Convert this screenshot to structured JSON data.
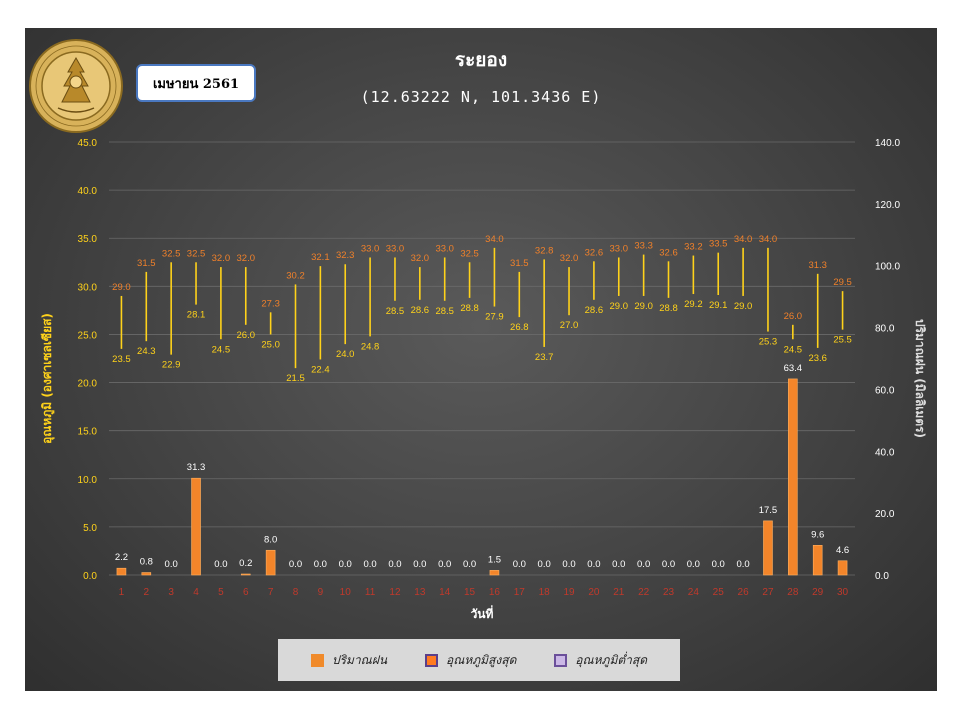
{
  "header": {
    "title": "ระยอง",
    "coordinates": "(12.63222 N, 101.3436 E)",
    "month_label": "เมษายน 2561",
    "logo_text": "METEOROLOGICAL DEPARTMENT"
  },
  "legend": {
    "items": [
      {
        "label": "ปริมาณฝน",
        "color": "#f08a2a",
        "border": "#f08a2a"
      },
      {
        "label": "อุณหภูมิสูงสุด",
        "color": "#ff7a20",
        "border": "#5b3f8a"
      },
      {
        "label": "อุณหภูมิต่ำสุด",
        "color": "#cbb8e6",
        "border": "#6b4f9a"
      }
    ]
  },
  "colors": {
    "rain_bar": "#f3852a",
    "temp_range": "#ffd21a",
    "max_label": "#f0802a",
    "min_label": "#ffd21a",
    "gridline": "#6a6a6a"
  },
  "chart_data": {
    "type": "bar",
    "x": [
      1,
      2,
      3,
      4,
      5,
      6,
      7,
      8,
      9,
      10,
      11,
      12,
      13,
      14,
      15,
      16,
      17,
      18,
      19,
      20,
      21,
      22,
      23,
      24,
      25,
      26,
      27,
      28,
      29,
      30
    ],
    "xlabel": "วันที่",
    "ylabel_left": "อุณหภูมิ (องศาเซลเซียส)",
    "ylabel_right": "ปริมาณฝน (มิลลิเมตร)",
    "ylim_left": [
      0,
      45
    ],
    "yticks_left": [
      "0.0",
      "5.0",
      "10.0",
      "15.0",
      "20.0",
      "25.0",
      "30.0",
      "35.0",
      "40.0",
      "45.0"
    ],
    "ylim_right": [
      0,
      140
    ],
    "yticks_right": [
      "0.0",
      "20.0",
      "40.0",
      "60.0",
      "80.0",
      "100.0",
      "120.0",
      "140.0"
    ],
    "grid": true,
    "legend_position": "bottom",
    "series": [
      {
        "name": "ปริมาณฝน",
        "axis": "right",
        "type": "bar",
        "values": [
          2.2,
          0.8,
          0.0,
          31.3,
          0.0,
          0.2,
          8.0,
          0.0,
          0.0,
          0.0,
          0.0,
          0.0,
          0.0,
          0.0,
          0.0,
          1.5,
          0.0,
          0.0,
          0.0,
          0.0,
          0.0,
          0.0,
          0.0,
          0.0,
          0.0,
          0.0,
          17.5,
          63.4,
          9.6,
          4.6
        ],
        "labels": [
          "2.2",
          "0.8",
          "0.0",
          "31.3",
          "0.0",
          "0.2",
          "8.0",
          "0.0",
          "0.0",
          "0.0",
          "0.0",
          "0.0",
          "0.0",
          "0.0",
          "0.0",
          "1.5",
          "0.0",
          "0.0",
          "0.0",
          "0.0",
          "0.0",
          "0.0",
          "0.0",
          "0.0",
          "0.0",
          "0.0",
          "17.5",
          "63.4",
          "9.6",
          "4.6"
        ]
      },
      {
        "name": "อุณหภูมิสูงสุด",
        "axis": "left",
        "type": "range-high",
        "values": [
          29.0,
          31.5,
          32.5,
          32.5,
          32.0,
          32.0,
          27.3,
          30.2,
          32.1,
          32.3,
          33.0,
          33.0,
          32.0,
          33.0,
          32.5,
          34.0,
          31.5,
          32.8,
          32.0,
          32.6,
          33.0,
          33.3,
          32.6,
          33.2,
          33.5,
          34.0,
          34.0,
          26.0,
          31.3,
          29.5
        ],
        "labels": [
          "29.0",
          "31.5",
          "32.5",
          "32.5",
          "32.0",
          "32.0",
          "27.3",
          "30.2",
          "32.1",
          "32.3",
          "33.0",
          "33.0",
          "32.0",
          "33.0",
          "32.5",
          "34.0",
          "31.5",
          "32.8",
          "32.0",
          "32.6",
          "33.0",
          "33.3",
          "32.6",
          "33.2",
          "33.5",
          "34.0",
          "34.0",
          "26.0",
          "31.3",
          "29.5"
        ]
      },
      {
        "name": "อุณหภูมิต่ำสุด",
        "axis": "left",
        "type": "range-low",
        "values": [
          23.5,
          24.3,
          22.9,
          28.1,
          24.5,
          26.0,
          25.0,
          21.5,
          22.4,
          24.0,
          24.8,
          28.5,
          28.6,
          28.5,
          28.8,
          27.9,
          26.8,
          23.7,
          27.0,
          28.6,
          29.0,
          29.0,
          28.8,
          29.2,
          29.1,
          29.0,
          25.3,
          24.5,
          23.6,
          25.5
        ],
        "labels": [
          "23.5",
          "24.3",
          "22.9",
          "28.1",
          "24.5",
          "26.0",
          "25.0",
          "21.5",
          "22.4",
          "24.0",
          "24.8",
          "28.5",
          "28.6",
          "28.5",
          "28.8",
          "27.9",
          "26.8",
          "23.7",
          "27.0",
          "28.6",
          "29.0",
          "29.0",
          "28.8",
          "29.2",
          "29.1",
          "29.0",
          "25.3",
          "24.5",
          "23.6",
          "25.5"
        ]
      }
    ]
  }
}
